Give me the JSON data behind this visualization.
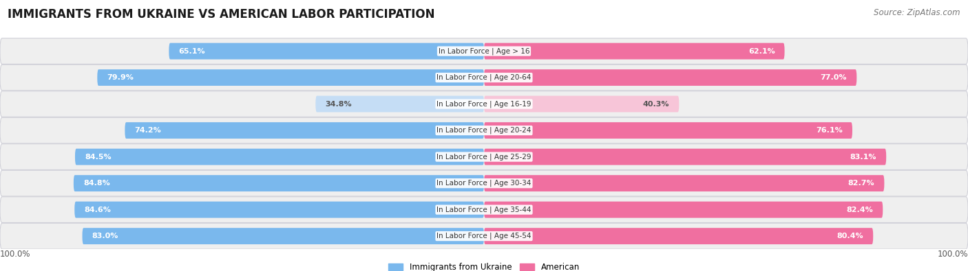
{
  "title": "IMMIGRANTS FROM UKRAINE VS AMERICAN LABOR PARTICIPATION",
  "source": "Source: ZipAtlas.com",
  "categories": [
    "In Labor Force | Age > 16",
    "In Labor Force | Age 20-64",
    "In Labor Force | Age 16-19",
    "In Labor Force | Age 20-24",
    "In Labor Force | Age 25-29",
    "In Labor Force | Age 30-34",
    "In Labor Force | Age 35-44",
    "In Labor Force | Age 45-54"
  ],
  "ukraine_values": [
    65.1,
    79.9,
    34.8,
    74.2,
    84.5,
    84.8,
    84.6,
    83.0
  ],
  "american_values": [
    62.1,
    77.0,
    40.3,
    76.1,
    83.1,
    82.7,
    82.4,
    80.4
  ],
  "ukraine_color_strong": "#7ab8ed",
  "ukraine_color_light": "#c5ddf5",
  "american_color_strong": "#f06fa0",
  "american_color_light": "#f7c5d8",
  "bg_row_color": "#efefef",
  "bar_height": 0.62,
  "max_value": 100.0,
  "legend_ukraine": "Immigrants from Ukraine",
  "legend_american": "American",
  "title_fontsize": 12,
  "label_fontsize": 8.0,
  "tick_fontsize": 8.5,
  "source_fontsize": 8.5
}
